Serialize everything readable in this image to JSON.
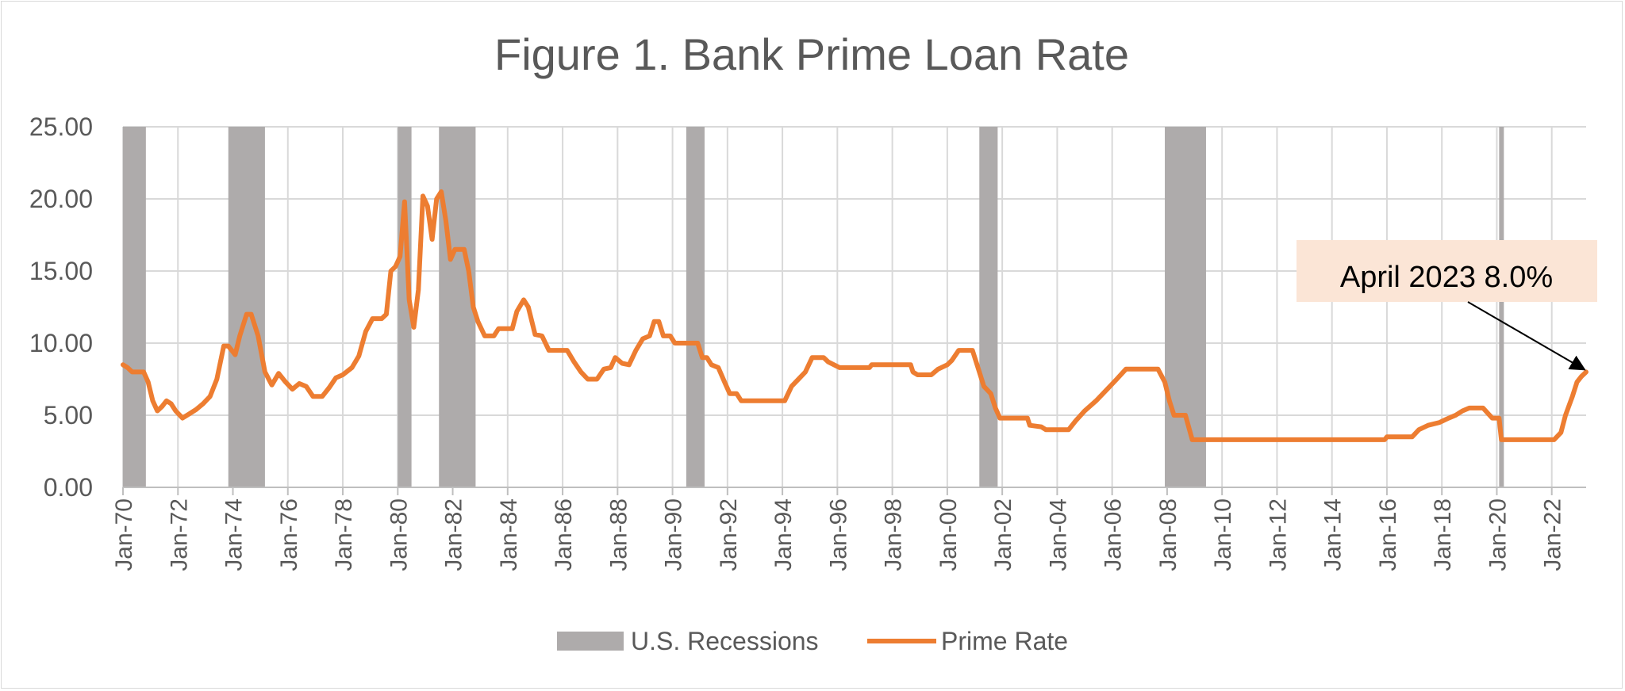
{
  "chart_data": {
    "type": "line",
    "title": "Figure 1. Bank Prime Loan Rate",
    "xlabel": "",
    "ylabel": "",
    "ylim": [
      0,
      25
    ],
    "xlim": [
      "1970-01",
      "2023-04"
    ],
    "y_ticks": [
      "0.00",
      "5.00",
      "10.00",
      "15.00",
      "20.00",
      "25.00"
    ],
    "x_ticks": [
      {
        "date": "1970-01",
        "label": "Jan-70"
      },
      {
        "date": "1972-01",
        "label": "Jan-72"
      },
      {
        "date": "1974-01",
        "label": "Jan-74"
      },
      {
        "date": "1976-01",
        "label": "Jan-76"
      },
      {
        "date": "1978-01",
        "label": "Jan-78"
      },
      {
        "date": "1980-01",
        "label": "Jan-80"
      },
      {
        "date": "1982-01",
        "label": "Jan-82"
      },
      {
        "date": "1984-01",
        "label": "Jan-84"
      },
      {
        "date": "1986-01",
        "label": "Jan-86"
      },
      {
        "date": "1988-01",
        "label": "Jan-88"
      },
      {
        "date": "1990-01",
        "label": "Jan-90"
      },
      {
        "date": "1992-01",
        "label": "Jan-92"
      },
      {
        "date": "1994-01",
        "label": "Jan-94"
      },
      {
        "date": "1996-01",
        "label": "Jan-96"
      },
      {
        "date": "1998-01",
        "label": "Jan-98"
      },
      {
        "date": "2000-01",
        "label": "Jan-00"
      },
      {
        "date": "2002-01",
        "label": "Jan-02"
      },
      {
        "date": "2004-01",
        "label": "Jan-04"
      },
      {
        "date": "2006-01",
        "label": "Jan-06"
      },
      {
        "date": "2008-01",
        "label": "Jan-08"
      },
      {
        "date": "2010-01",
        "label": "Jan-10"
      },
      {
        "date": "2012-01",
        "label": "Jan-12"
      },
      {
        "date": "2014-01",
        "label": "Jan-14"
      },
      {
        "date": "2016-01",
        "label": "Jan-16"
      },
      {
        "date": "2018-01",
        "label": "Jan-18"
      },
      {
        "date": "2020-01",
        "label": "Jan-20"
      },
      {
        "date": "2022-01",
        "label": "Jan-22"
      }
    ],
    "grid": true,
    "legend_position": "bottom",
    "recessions": {
      "name": "U.S. Recessions",
      "color": "#aeabab",
      "periods": [
        {
          "start": "1970-01",
          "end": "1970-11"
        },
        {
          "start": "1973-11",
          "end": "1975-03"
        },
        {
          "start": "1980-01",
          "end": "1980-07"
        },
        {
          "start": "1981-07",
          "end": "1982-11"
        },
        {
          "start": "1990-07",
          "end": "1991-03"
        },
        {
          "start": "2001-03",
          "end": "2001-11"
        },
        {
          "start": "2007-12",
          "end": "2009-06"
        },
        {
          "start": "2020-02",
          "end": "2020-04"
        }
      ]
    },
    "series": [
      {
        "name": "Prime Rate",
        "color": "#ed7d31",
        "points": [
          [
            "1970-01",
            8.5
          ],
          [
            "1970-03",
            8.3
          ],
          [
            "1970-05",
            8.0
          ],
          [
            "1970-10",
            8.0
          ],
          [
            "1970-12",
            7.3
          ],
          [
            "1971-02",
            6.0
          ],
          [
            "1971-04",
            5.3
          ],
          [
            "1971-06",
            5.6
          ],
          [
            "1971-08",
            6.0
          ],
          [
            "1971-10",
            5.8
          ],
          [
            "1971-12",
            5.3
          ],
          [
            "1972-03",
            4.8
          ],
          [
            "1972-06",
            5.1
          ],
          [
            "1972-09",
            5.4
          ],
          [
            "1972-12",
            5.8
          ],
          [
            "1973-03",
            6.3
          ],
          [
            "1973-06",
            7.5
          ],
          [
            "1973-09",
            9.8
          ],
          [
            "1973-11",
            9.8
          ],
          [
            "1974-02",
            9.2
          ],
          [
            "1974-04",
            10.5
          ],
          [
            "1974-07",
            12.0
          ],
          [
            "1974-09",
            12.0
          ],
          [
            "1974-12",
            10.5
          ],
          [
            "1975-03",
            8.0
          ],
          [
            "1975-06",
            7.1
          ],
          [
            "1975-09",
            7.9
          ],
          [
            "1975-12",
            7.3
          ],
          [
            "1976-03",
            6.8
          ],
          [
            "1976-06",
            7.2
          ],
          [
            "1976-09",
            7.0
          ],
          [
            "1976-12",
            6.3
          ],
          [
            "1977-04",
            6.3
          ],
          [
            "1977-07",
            6.9
          ],
          [
            "1977-10",
            7.6
          ],
          [
            "1978-01",
            7.8
          ],
          [
            "1978-05",
            8.3
          ],
          [
            "1978-08",
            9.1
          ],
          [
            "1978-11",
            10.8
          ],
          [
            "1979-02",
            11.7
          ],
          [
            "1979-06",
            11.7
          ],
          [
            "1979-08",
            12.0
          ],
          [
            "1979-10",
            15.0
          ],
          [
            "1979-12",
            15.3
          ],
          [
            "1980-02",
            16.0
          ],
          [
            "1980-04",
            19.8
          ],
          [
            "1980-06",
            13.0
          ],
          [
            "1980-08",
            11.1
          ],
          [
            "1980-10",
            13.7
          ],
          [
            "1980-12",
            20.2
          ],
          [
            "1981-02",
            19.5
          ],
          [
            "1981-04",
            17.2
          ],
          [
            "1981-06",
            20.0
          ],
          [
            "1981-08",
            20.5
          ],
          [
            "1981-10",
            18.5
          ],
          [
            "1981-12",
            15.8
          ],
          [
            "1982-02",
            16.5
          ],
          [
            "1982-06",
            16.5
          ],
          [
            "1982-08",
            15.0
          ],
          [
            "1982-10",
            12.5
          ],
          [
            "1982-12",
            11.5
          ],
          [
            "1983-03",
            10.5
          ],
          [
            "1983-07",
            10.5
          ],
          [
            "1983-09",
            11.0
          ],
          [
            "1984-03",
            11.0
          ],
          [
            "1984-05",
            12.2
          ],
          [
            "1984-08",
            13.0
          ],
          [
            "1984-10",
            12.5
          ],
          [
            "1985-01",
            10.6
          ],
          [
            "1985-04",
            10.5
          ],
          [
            "1985-07",
            9.5
          ],
          [
            "1985-12",
            9.5
          ],
          [
            "1986-03",
            9.5
          ],
          [
            "1986-06",
            8.7
          ],
          [
            "1986-09",
            8.0
          ],
          [
            "1986-12",
            7.5
          ],
          [
            "1987-04",
            7.5
          ],
          [
            "1987-07",
            8.2
          ],
          [
            "1987-10",
            8.3
          ],
          [
            "1987-12",
            9.0
          ],
          [
            "1988-03",
            8.6
          ],
          [
            "1988-06",
            8.5
          ],
          [
            "1988-09",
            9.5
          ],
          [
            "1988-12",
            10.3
          ],
          [
            "1989-03",
            10.5
          ],
          [
            "1989-05",
            11.5
          ],
          [
            "1989-07",
            11.5
          ],
          [
            "1989-09",
            10.5
          ],
          [
            "1989-12",
            10.5
          ],
          [
            "1990-02",
            10.0
          ],
          [
            "1990-08",
            10.0
          ],
          [
            "1990-12",
            10.0
          ],
          [
            "1991-02",
            9.0
          ],
          [
            "1991-04",
            9.0
          ],
          [
            "1991-06",
            8.5
          ],
          [
            "1991-09",
            8.3
          ],
          [
            "1991-12",
            7.2
          ],
          [
            "1992-02",
            6.5
          ],
          [
            "1992-05",
            6.5
          ],
          [
            "1992-07",
            6.0
          ],
          [
            "1994-02",
            6.0
          ],
          [
            "1994-05",
            7.0
          ],
          [
            "1994-08",
            7.5
          ],
          [
            "1994-11",
            8.0
          ],
          [
            "1995-02",
            9.0
          ],
          [
            "1995-07",
            9.0
          ],
          [
            "1995-09",
            8.7
          ],
          [
            "1996-02",
            8.3
          ],
          [
            "1997-03",
            8.3
          ],
          [
            "1997-04",
            8.5
          ],
          [
            "1998-09",
            8.5
          ],
          [
            "1998-10",
            8.0
          ],
          [
            "1998-12",
            7.8
          ],
          [
            "1999-06",
            7.8
          ],
          [
            "1999-09",
            8.2
          ],
          [
            "2000-01",
            8.5
          ],
          [
            "2000-03",
            8.8
          ],
          [
            "2000-06",
            9.5
          ],
          [
            "2000-12",
            9.5
          ],
          [
            "2001-02",
            8.5
          ],
          [
            "2001-05",
            7.0
          ],
          [
            "2001-08",
            6.5
          ],
          [
            "2001-10",
            5.5
          ],
          [
            "2001-12",
            4.8
          ],
          [
            "2002-12",
            4.8
          ],
          [
            "2003-01",
            4.3
          ],
          [
            "2003-06",
            4.2
          ],
          [
            "2003-08",
            4.0
          ],
          [
            "2004-06",
            4.0
          ],
          [
            "2004-09",
            4.6
          ],
          [
            "2005-01",
            5.3
          ],
          [
            "2005-06",
            6.0
          ],
          [
            "2005-12",
            7.0
          ],
          [
            "2006-03",
            7.5
          ],
          [
            "2006-07",
            8.2
          ],
          [
            "2007-09",
            8.2
          ],
          [
            "2007-12",
            7.3
          ],
          [
            "2008-02",
            6.0
          ],
          [
            "2008-04",
            5.0
          ],
          [
            "2008-09",
            5.0
          ],
          [
            "2008-12",
            3.3
          ],
          [
            "2015-12",
            3.3
          ],
          [
            "2016-01",
            3.5
          ],
          [
            "2016-12",
            3.5
          ],
          [
            "2017-03",
            4.0
          ],
          [
            "2017-07",
            4.3
          ],
          [
            "2017-12",
            4.5
          ],
          [
            "2018-04",
            4.8
          ],
          [
            "2018-07",
            5.0
          ],
          [
            "2018-10",
            5.3
          ],
          [
            "2019-01",
            5.5
          ],
          [
            "2019-07",
            5.5
          ],
          [
            "2019-11",
            4.8
          ],
          [
            "2020-02",
            4.8
          ],
          [
            "2020-03",
            3.3
          ],
          [
            "2022-02",
            3.3
          ],
          [
            "2022-05",
            3.8
          ],
          [
            "2022-07",
            5.0
          ],
          [
            "2022-10",
            6.3
          ],
          [
            "2022-12",
            7.3
          ],
          [
            "2023-02",
            7.7
          ],
          [
            "2023-04",
            8.0
          ]
        ]
      }
    ],
    "annotation": {
      "text": "April 2023 8.0%",
      "target_date": "2023-04",
      "target_value": 8.0,
      "box_color": "#fbe5d6"
    }
  }
}
